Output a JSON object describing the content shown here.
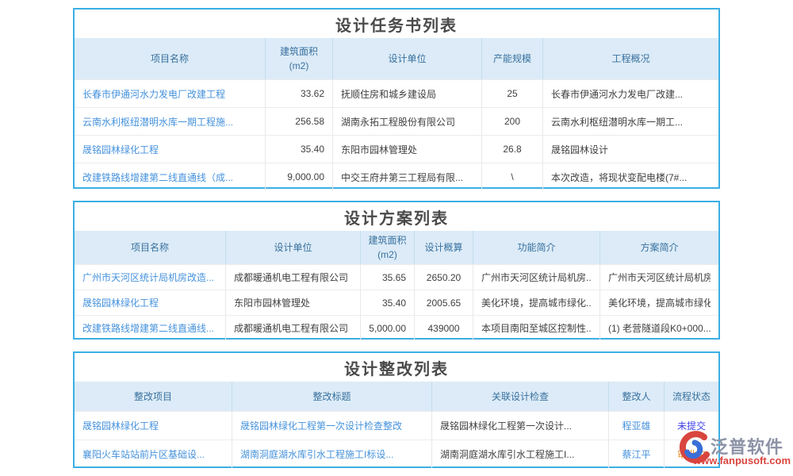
{
  "colors": {
    "panelBorder": "#3BAFE4",
    "headerBg": "#DCEBF7",
    "headerText": "#39719F",
    "link": "#4592DC",
    "bodyText": "#404040",
    "titleText": "#4A4A4A",
    "statusUnsubmitted": "#4343E8",
    "statusApproving": "#E8891B",
    "brandGray": "#8C93A6",
    "brandRed": "#D8453E"
  },
  "watermark": {
    "brand": "泛普软件",
    "url": "www.fanpusoft.com"
  },
  "tables": [
    {
      "title": "设计任务书列表",
      "columns": [
        "项目名称",
        "建筑面积\n(m2)",
        "设计单位",
        "产能规模",
        "工程概况"
      ],
      "rows": [
        [
          {
            "t": "长春市伊通河水力发电厂改建工程",
            "k": "link"
          },
          {
            "t": "33.62",
            "k": "text"
          },
          {
            "t": "抚顺住房和城乡建设局",
            "k": "text"
          },
          {
            "t": "25",
            "k": "text"
          },
          {
            "t": "长春市伊通河水力发电厂改建...",
            "k": "text"
          }
        ],
        [
          {
            "t": "云南水利枢纽潜明水库一期工程施...",
            "k": "link"
          },
          {
            "t": "256.58",
            "k": "text"
          },
          {
            "t": "湖南永拓工程股份有限公司",
            "k": "text"
          },
          {
            "t": "200",
            "k": "text"
          },
          {
            "t": "云南水利枢纽潜明水库一期工...",
            "k": "text"
          }
        ],
        [
          {
            "t": "晟铭园林绿化工程",
            "k": "link"
          },
          {
            "t": "35.40",
            "k": "text"
          },
          {
            "t": "东阳市园林管理处",
            "k": "text"
          },
          {
            "t": "26.8",
            "k": "text"
          },
          {
            "t": "晟铭园林设计",
            "k": "text"
          }
        ],
        [
          {
            "t": "改建铁路线增建第二线直通线（成...",
            "k": "link"
          },
          {
            "t": "9,000.00",
            "k": "text"
          },
          {
            "t": "中交王府井第三工程局有限...",
            "k": "text"
          },
          {
            "t": "\\",
            "k": "text"
          },
          {
            "t": "本次改造，将现状变配电楼(7#...",
            "k": "text"
          }
        ]
      ]
    },
    {
      "title": "设计方案列表",
      "columns": [
        "项目名称",
        "设计单位",
        "建筑面积\n(m2)",
        "设计概算",
        "功能简介",
        "方案简介"
      ],
      "rows": [
        [
          {
            "t": "广州市天河区统计局机房改造...",
            "k": "link"
          },
          {
            "t": "成都暖通机电工程有限公司",
            "k": "text"
          },
          {
            "t": "35.65",
            "k": "text"
          },
          {
            "t": "2650.20",
            "k": "text"
          },
          {
            "t": "广州市天河区统计局机房...",
            "k": "text"
          },
          {
            "t": "广州市天河区统计局机房...",
            "k": "text"
          }
        ],
        [
          {
            "t": "晟铭园林绿化工程",
            "k": "link"
          },
          {
            "t": "东阳市园林管理处",
            "k": "text"
          },
          {
            "t": "35.40",
            "k": "text"
          },
          {
            "t": "2005.65",
            "k": "text"
          },
          {
            "t": "美化环境，提高城市绿化...",
            "k": "text"
          },
          {
            "t": "美化环境，提高城市绿化...",
            "k": "text"
          }
        ],
        [
          {
            "t": "改建铁路线增建第二线直通线...",
            "k": "link"
          },
          {
            "t": "成都暖通机电工程有限公司",
            "k": "text"
          },
          {
            "t": "5,000.00",
            "k": "text"
          },
          {
            "t": "439000",
            "k": "text"
          },
          {
            "t": "本项目南阳至城区控制性...",
            "k": "text"
          },
          {
            "t": "(1) 老营隧道段K0+000...",
            "k": "text"
          }
        ]
      ]
    },
    {
      "title": "设计整改列表",
      "columns": [
        "整改项目",
        "整改标题",
        "关联设计检查",
        "整改人",
        "流程状态"
      ],
      "rows": [
        [
          {
            "t": "晟铭园林绿化工程",
            "k": "link"
          },
          {
            "t": "晟铭园林绿化工程第一次设计检查整改",
            "k": "link"
          },
          {
            "t": "晟铭园林绿化工程第一次设计...",
            "k": "text"
          },
          {
            "t": "程亚雄",
            "k": "link"
          },
          {
            "t": "未提交",
            "k": "status",
            "c": "statusUnsubmitted"
          }
        ],
        [
          {
            "t": "襄阳火车站站前片区基础设...",
            "k": "link"
          },
          {
            "t": "湖南洞庭湖水库引水工程施工I标设...",
            "k": "link"
          },
          {
            "t": "湖南洞庭湖水库引水工程施工I...",
            "k": "text"
          },
          {
            "t": "蔡江平",
            "k": "link"
          },
          {
            "t": "审批中",
            "k": "status",
            "c": "statusApproving"
          }
        ]
      ]
    }
  ]
}
